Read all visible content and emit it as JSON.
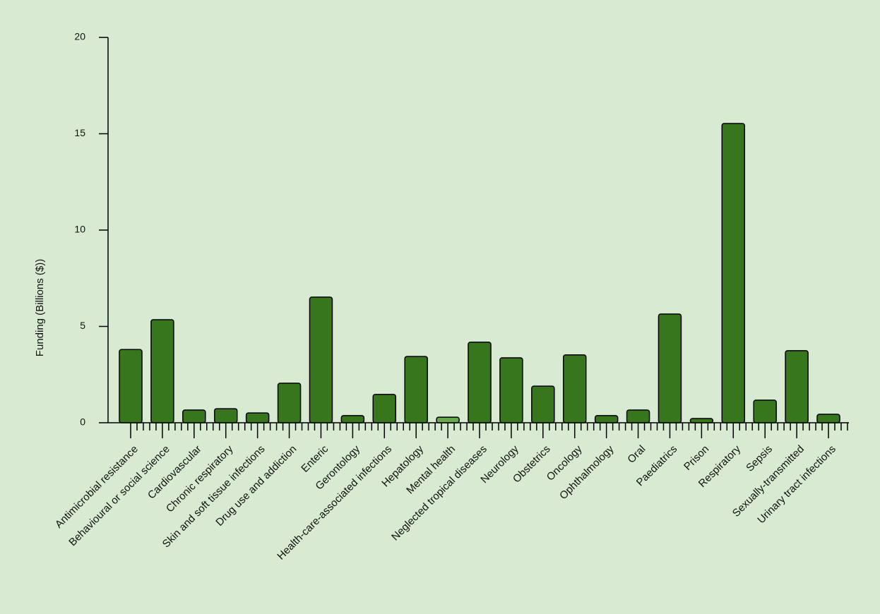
{
  "chart_data": {
    "type": "bar",
    "y_label": "Funding (Billions  ($))",
    "categories": [
      "Antimicrobial resistance",
      "Behavioural or social science",
      "Cardiovascular",
      "Chronic respiratory",
      "Skin and soft tissue infections",
      "Drug use and addiction",
      "Enteric",
      "Gerontology",
      "Health-care-associated infections",
      "Hepatology",
      "Mental health",
      "Neglected tropical diseases",
      "Neurology",
      "Obstetrics",
      "Oncology",
      "Ophthalmology",
      "Oral",
      "Paediatrics",
      "Prison",
      "Respiratory",
      "Sepsis",
      "Sexually-transmitted",
      "Urinary tract infections"
    ],
    "values": [
      3.8,
      5.35,
      0.66,
      0.73,
      0.51,
      2.05,
      6.52,
      0.37,
      1.47,
      3.44,
      0.29,
      4.18,
      3.37,
      1.9,
      3.52,
      0.37,
      0.66,
      5.64,
      0.22,
      15.53,
      1.17,
      3.74,
      0.44
    ],
    "colors": [
      "#38761d",
      "#38761d",
      "#38761d",
      "#38761d",
      "#38761d",
      "#38761d",
      "#38761d",
      "#38761d",
      "#38761d",
      "#38761d",
      "#6aa84f",
      "#38761d",
      "#38761d",
      "#38761d",
      "#38761d",
      "#38761d",
      "#38761d",
      "#38761d",
      "#38761d",
      "#38761d",
      "#38761d",
      "#38761d",
      "#38761d"
    ],
    "ylim": [
      0,
      20
    ],
    "yticks": [
      0,
      5,
      10,
      15,
      20
    ],
    "grid": false
  }
}
